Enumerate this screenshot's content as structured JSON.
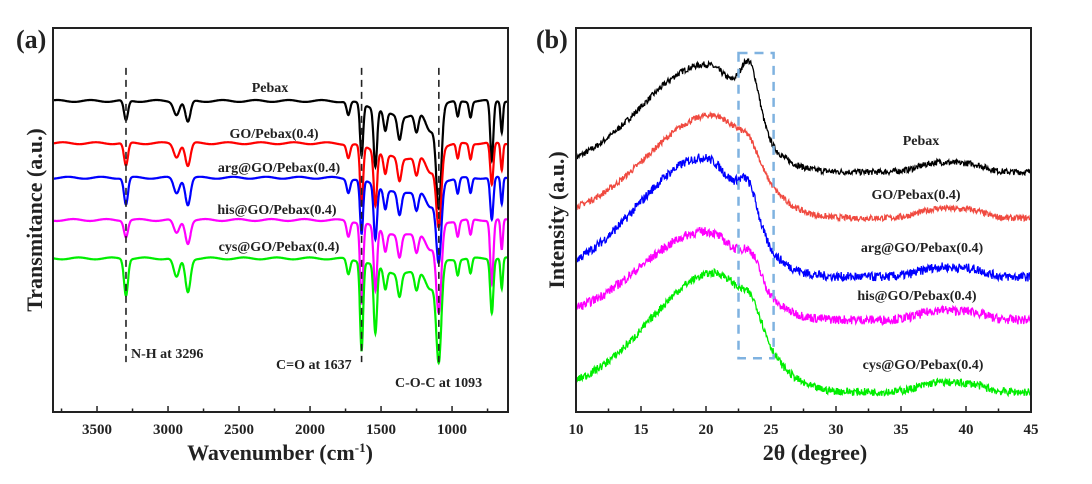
{
  "chart_data": [
    {
      "type": "line",
      "panel_label": "(a)",
      "xlabel": "Wavenumber (cm",
      "xlabel_sup": "-1",
      "xlabel_close": ")",
      "ylabel": "Transmitance (a.u.)",
      "xlim": [
        3810,
        606
      ],
      "ylim": [
        0,
        100
      ],
      "x_reversed": true,
      "xticks": [
        3500,
        3000,
        2500,
        2000,
        1500,
        1000
      ],
      "xtick_labels": [
        "3500",
        "3000",
        "2500",
        "2000",
        "1500",
        "1000"
      ],
      "peak_positions": [
        3296,
        2940,
        2860,
        1730,
        1637,
        1540,
        1470,
        1370,
        1250,
        1150,
        1093,
        960,
        870,
        720,
        650
      ],
      "peak_widths": [
        14,
        20,
        18,
        12,
        11,
        12,
        12,
        14,
        14,
        35,
        18,
        10,
        10,
        11,
        8
      ],
      "series": [
        {
          "name": "Pebax",
          "color": "#000000",
          "offset": 81,
          "depths": [
            5.2,
            3.5,
            5.6,
            3.5,
            13.5,
            15,
            5,
            6,
            5,
            6,
            25,
            4,
            4,
            15.6,
            8
          ]
        },
        {
          "name": "GO/Pebax(0.4)",
          "color": "#ff0000",
          "offset": 70,
          "depths": [
            6,
            3.5,
            6,
            3.5,
            15.6,
            14,
            5,
            6,
            5,
            6,
            19,
            4,
            4,
            11,
            7
          ]
        },
        {
          "name": "arg@GO/Pebax(0.4)",
          "color": "#0000ff",
          "offset": 61,
          "depths": [
            7,
            4,
            7,
            3.5,
            14,
            14,
            5,
            6,
            5,
            6,
            19.5,
            4,
            4,
            11,
            7
          ]
        },
        {
          "name": "his@GO/Pebax(0.4)",
          "color": "#ff00ff",
          "offset": 50,
          "depths": [
            4.3,
            3.5,
            6,
            4,
            21,
            16.5,
            5,
            6,
            5,
            6,
            21.7,
            4,
            4,
            16.5,
            8
          ]
        },
        {
          "name": "cys@GO/Pebax(0.4)",
          "color": "#00ee00",
          "offset": 40,
          "depths": [
            9.5,
            5,
            8.7,
            4,
            23,
            17.8,
            5,
            6,
            5,
            6,
            24.7,
            4,
            4,
            14,
            8
          ]
        }
      ],
      "reference_lines": [
        {
          "x": 3296,
          "label": "N-H at 3296"
        },
        {
          "x": 1637,
          "label": "C=O at 1637"
        },
        {
          "x": 1093,
          "label": "C-O-C at 1093"
        }
      ]
    },
    {
      "type": "line",
      "panel_label": "(b)",
      "xlabel": "2θ (degree)",
      "ylabel": "Intensity (a.u.)",
      "xlim": [
        10,
        45
      ],
      "ylim": [
        0,
        100
      ],
      "xticks": [
        10,
        15,
        20,
        25,
        30,
        35,
        40,
        45
      ],
      "xtick_labels": [
        "10",
        "15",
        "20",
        "25",
        "30",
        "35",
        "40",
        "45"
      ],
      "highlight_box": {
        "x": [
          22.5,
          25.2
        ],
        "y": [
          14,
          93.5
        ],
        "color": "#7fb2e0"
      },
      "series": [
        {
          "name": "Pebax",
          "color": "#000000",
          "baseline": 62.5,
          "hump_center": 20,
          "hump_height": 28,
          "sharp_peak": 23.4,
          "sharp_height": 13.7,
          "noise": 1.0
        },
        {
          "name": "GO/Pebax(0.4)",
          "color": "#f04a40",
          "baseline": 50.5,
          "hump_center": 20.5,
          "hump_height": 26.8,
          "sharp_peak": 23.4,
          "sharp_height": 4,
          "noise": 1.0
        },
        {
          "name": "arg@GO/Pebax(0.4)",
          "color": "#0000ff",
          "baseline": 35.2,
          "hump_center": 19.8,
          "hump_height": 31,
          "sharp_peak": 23.3,
          "sharp_height": 9,
          "noise": 1.5
        },
        {
          "name": "his@GO/Pebax(0.4)",
          "color": "#ff00ff",
          "baseline": 24,
          "hump_center": 20,
          "hump_height": 23,
          "sharp_peak": 23.5,
          "sharp_height": 6,
          "noise": 1.5
        },
        {
          "name": "cys@GO/Pebax(0.4)",
          "color": "#00ee00",
          "baseline": 5.2,
          "hump_center": 20.7,
          "hump_height": 31,
          "sharp_peak": 23.6,
          "sharp_height": 5,
          "noise": 1.3
        }
      ]
    }
  ]
}
